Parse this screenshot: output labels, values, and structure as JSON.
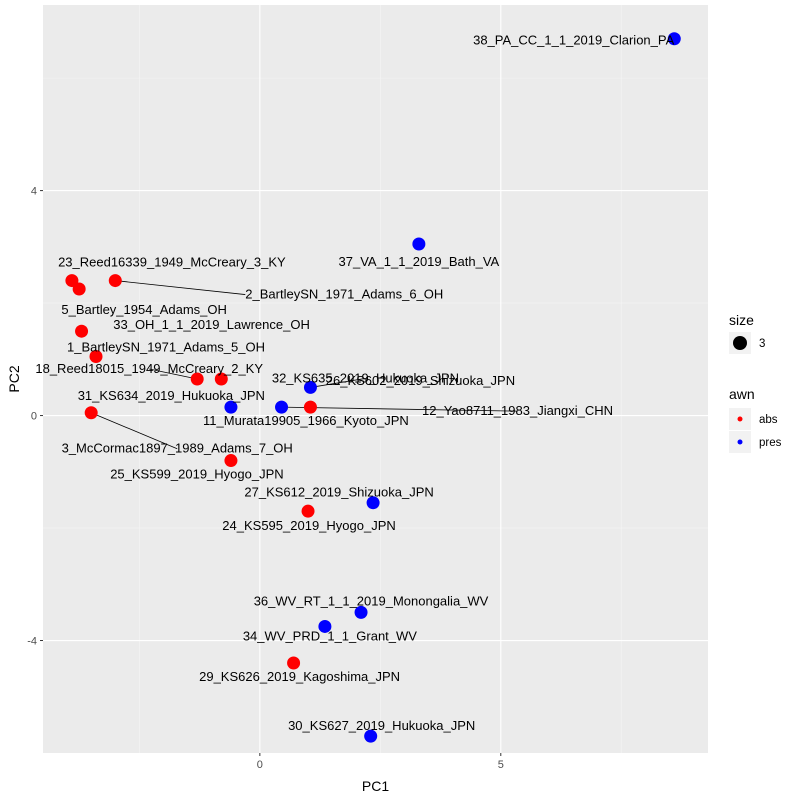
{
  "chart_data": {
    "type": "scatter",
    "xlabel": "PC1",
    "ylabel": "PC2",
    "xlim": [
      -4.5,
      9.3
    ],
    "ylim": [
      -6.0,
      7.3
    ],
    "x_ticks": [
      0,
      5
    ],
    "y_ticks": [
      -4,
      0,
      4
    ],
    "grid": true,
    "legend": {
      "size": {
        "title": "size",
        "entries": [
          "3"
        ]
      },
      "awn": {
        "title": "awn",
        "entries": [
          {
            "label": "abs",
            "color": "#FF0000"
          },
          {
            "label": "pres",
            "color": "#0000FF"
          }
        ]
      }
    },
    "points": [
      {
        "label": "38_PA_CC_1_1_2019_Clarion_PA",
        "x": 8.6,
        "y": 6.7,
        "awn": "pres"
      },
      {
        "label": "37_VA_1_1_2019_Bath_VA",
        "x": 3.3,
        "y": 3.05,
        "awn": "pres"
      },
      {
        "label": "23_Reed16339_1949_McCreary_3_KY",
        "x": -3.9,
        "y": 2.4,
        "awn": "abs"
      },
      {
        "label": "5_Bartley_1954_Adams_OH",
        "x": -3.75,
        "y": 2.25,
        "awn": "abs"
      },
      {
        "label": "2_BartleySN_1971_Adams_6_OH",
        "x": -3.0,
        "y": 2.4,
        "awn": "abs"
      },
      {
        "label": "33_OH_1_1_2019_Lawrence_OH",
        "x": -3.7,
        "y": 1.5,
        "awn": "abs"
      },
      {
        "label": "1_BartleySN_1971_Adams_5_OH",
        "x": -3.4,
        "y": 1.05,
        "awn": "abs"
      },
      {
        "label": "18_Reed18015_1949_McCreary_2_KY",
        "x": -1.3,
        "y": 0.65,
        "awn": "abs"
      },
      {
        "label": "32_KS635_2019_Hukuoka_JPN",
        "x": 1.05,
        "y": 0.5,
        "awn": "pres"
      },
      {
        "label": "26_KS602_2019_Shizuoka_JPN",
        "x": 1.05,
        "y": 0.15,
        "awn": "abs"
      },
      {
        "label": "31_KS634_2019_Hukuoka_JPN",
        "x": -0.8,
        "y": 0.65,
        "awn": "abs"
      },
      {
        "label": "11_Murata19905_1966_Kyoto_JPN",
        "x": -0.6,
        "y": 0.15,
        "awn": "pres"
      },
      {
        "label": "12_Yao8711_1983_Jiangxi_CHN",
        "x": 0.45,
        "y": 0.15,
        "awn": "pres"
      },
      {
        "label": "3_McCormac1897_1989_Adams_7_OH",
        "x": -3.5,
        "y": 0.05,
        "awn": "abs"
      },
      {
        "label": "25_KS599_2019_Hyogo_JPN",
        "x": -0.6,
        "y": -0.8,
        "awn": "abs"
      },
      {
        "label": "27_KS612_2019_Shizuoka_JPN",
        "x": 2.35,
        "y": -1.55,
        "awn": "pres"
      },
      {
        "label": "24_KS595_2019_Hyogo_JPN",
        "x": 1.0,
        "y": -1.7,
        "awn": "abs"
      },
      {
        "label": "36_WV_RT_1_1_2019_Monongalia_WV",
        "x": 2.1,
        "y": -3.5,
        "awn": "pres"
      },
      {
        "label": "34_WV_PRD_1_1_Grant_WV",
        "x": 1.35,
        "y": -3.75,
        "awn": "pres"
      },
      {
        "label": "29_KS626_2019_Kagoshima_JPN",
        "x": 0.7,
        "y": -4.4,
        "awn": "abs"
      },
      {
        "label": "30_KS627_2019_Hukuoka_JPN",
        "x": 2.3,
        "y": -5.7,
        "awn": "pres"
      }
    ]
  }
}
